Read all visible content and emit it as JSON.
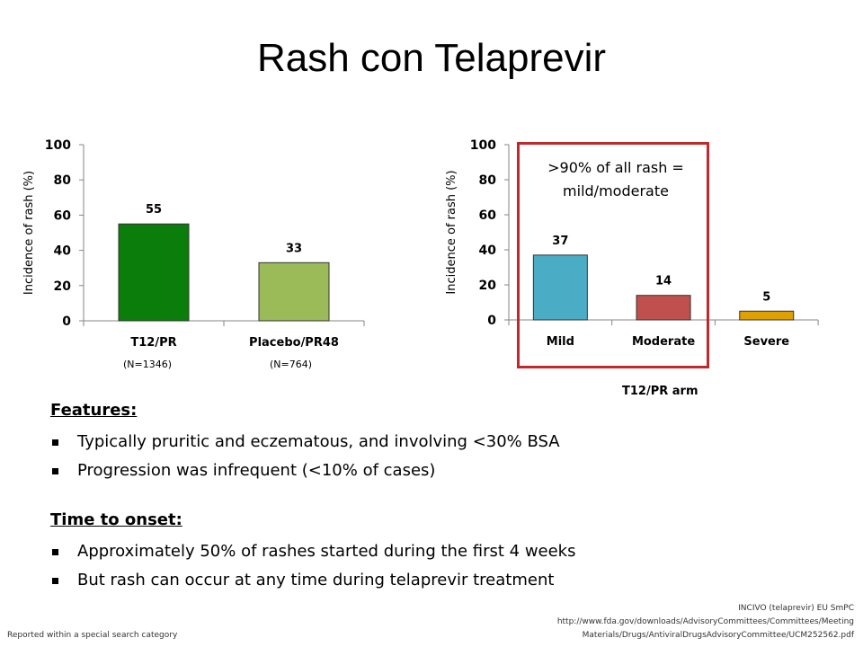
{
  "title": "Rash con Telaprevir",
  "chart_data": [
    {
      "type": "bar",
      "ylabel": "Incidence of rash (%)",
      "ylim": [
        0,
        100
      ],
      "yticks": [
        0,
        20,
        40,
        60,
        80,
        100
      ],
      "categories": [
        "T12/PR",
        "Placebo/PR48"
      ],
      "values": [
        55,
        33
      ],
      "sublabels": [
        "(N=1346)",
        "(N=764)"
      ],
      "colors": [
        "#0a7d0a",
        "#9bbb59"
      ]
    },
    {
      "type": "bar",
      "ylabel": "Incidence of rash (%)",
      "ylim": [
        0,
        100
      ],
      "yticks": [
        0,
        20,
        40,
        60,
        80,
        100
      ],
      "categories": [
        "Mild",
        "Moderate",
        "Severe"
      ],
      "values": [
        37,
        14,
        5
      ],
      "xlabel": "T12/PR arm",
      "annotation": ">90% of all rash = mild/moderate",
      "colors": [
        "#4bacc6",
        "#c0504d",
        "#e0a000"
      ]
    }
  ],
  "features": {
    "heading": "Features:",
    "items": [
      "Typically pruritic and eczematous, and involving <30% BSA",
      "Progression was infrequent (<10% of cases)"
    ]
  },
  "onset": {
    "heading": "Time to onset:",
    "items": [
      "Approximately 50% of rashes started during the first 4 weeks",
      "But rash can occur at any time during telaprevir treatment"
    ]
  },
  "footnote": "Reported within a special search category",
  "reference": {
    "line1": "INCIVO  (telaprevir) EU SmPC",
    "line2": "http://www.fda.gov/downloads/AdvisoryCommittees/Committees/Meeting",
    "line3": "Materials/Drugs/AntiviralDrugsAdvisoryCommittee/UCM252562.pdf"
  }
}
